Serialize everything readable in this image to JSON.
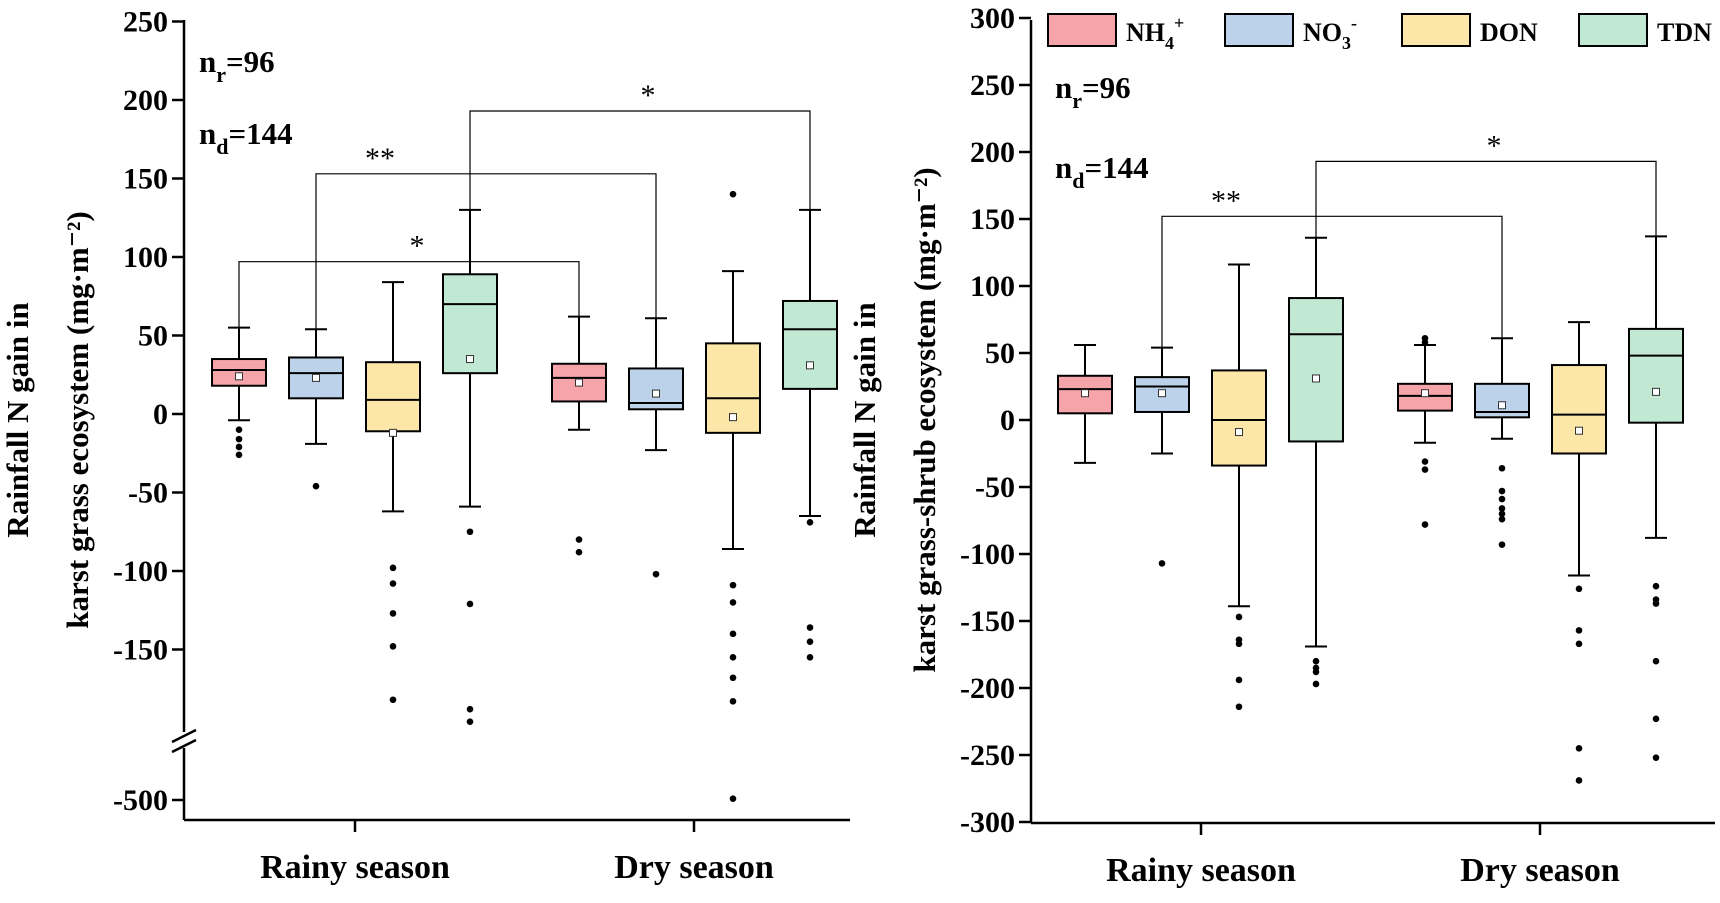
{
  "chart_data": [
    {
      "type": "box",
      "title": "",
      "ylabel_lines": [
        "Rainfall N gain in",
        "karst grass ecosystem (mg·m⁻²)"
      ],
      "categories": [
        "Rainy season",
        "Dry season"
      ],
      "series_names": [
        "NH4+",
        "NO3-",
        "DON",
        "TDN"
      ],
      "ylim": [
        -500,
        250
      ],
      "axis_break": {
        "between": [
          -500,
          -200
        ]
      },
      "yticks": [
        -500,
        -150,
        -100,
        -50,
        0,
        50,
        100,
        150,
        200,
        250
      ],
      "tick_labels": [
        "-500",
        "-150",
        "-100",
        "-50",
        "0",
        "50",
        "100",
        "150",
        "200",
        "250"
      ],
      "annotations": {
        "n_r": "96",
        "n_d": "144"
      },
      "boxes": [
        {
          "series": "NH4+",
          "category": "Rainy season",
          "q1": 18,
          "median": 28,
          "q3": 35,
          "whisker_low": -4,
          "whisker_high": 55,
          "mean": 24,
          "outliers": [
            -10,
            -16,
            -21,
            -26
          ]
        },
        {
          "series": "NO3-",
          "category": "Rainy season",
          "q1": 10,
          "median": 26,
          "q3": 36,
          "whisker_low": -19,
          "whisker_high": 54,
          "mean": 23,
          "outliers": [
            -46
          ]
        },
        {
          "series": "DON",
          "category": "Rainy season",
          "q1": -11,
          "median": 9,
          "q3": 33,
          "whisker_low": -62,
          "whisker_high": 84,
          "mean": -12,
          "outliers": [
            -98,
            -108,
            -127,
            -148,
            -182
          ]
        },
        {
          "series": "TDN",
          "category": "Rainy season",
          "q1": 26,
          "median": 70,
          "q3": 89,
          "whisker_low": -59,
          "whisker_high": 130,
          "mean": 35,
          "outliers": [
            -75,
            -121,
            -188,
            -196
          ]
        },
        {
          "series": "NH4+",
          "category": "Dry season",
          "q1": 8,
          "median": 23,
          "q3": 32,
          "whisker_low": -10,
          "whisker_high": 62,
          "mean": 20,
          "outliers": [
            -80,
            -88
          ]
        },
        {
          "series": "NO3-",
          "category": "Dry season",
          "q1": 3,
          "median": 7,
          "q3": 29,
          "whisker_low": -23,
          "whisker_high": 61,
          "mean": 13,
          "outliers": [
            -102
          ]
        },
        {
          "series": "DON",
          "category": "Dry season",
          "q1": -12,
          "median": 10,
          "q3": 45,
          "whisker_low": -86,
          "whisker_high": 91,
          "mean": -2,
          "outliers": [
            140,
            -109,
            -120,
            -140,
            -155,
            -168,
            -183,
            -480
          ]
        },
        {
          "series": "TDN",
          "category": "Dry season",
          "q1": 16,
          "median": 54,
          "q3": 72,
          "whisker_low": -65,
          "whisker_high": 130,
          "mean": 31,
          "outliers": [
            -69,
            -136,
            -145,
            -155
          ]
        }
      ],
      "significance": [
        {
          "from": "NH4+ Rainy season",
          "to": "NH4+ Dry season",
          "label": "*",
          "level": 97
        },
        {
          "from": "NO3- Rainy season",
          "to": "NO3- Dry season",
          "label": "**",
          "level": 153
        },
        {
          "from": "TDN Rainy season",
          "to": "TDN Dry season",
          "label": "*",
          "level": 193
        }
      ]
    },
    {
      "type": "box",
      "title": "",
      "ylabel_lines": [
        "Rainfall N gain in",
        "karst grass-shrub ecosystem (mg·m⁻²)"
      ],
      "categories": [
        "Rainy season",
        "Dry season"
      ],
      "series_names": [
        "NH4+",
        "NO3-",
        "DON",
        "TDN"
      ],
      "ylim": [
        -300,
        300
      ],
      "yticks": [
        -300,
        -250,
        -200,
        -150,
        -100,
        -50,
        0,
        50,
        100,
        150,
        200,
        250,
        300
      ],
      "tick_labels": [
        "-300",
        "-250",
        "-200",
        "-150",
        "-100",
        "-50",
        "0",
        "50",
        "100",
        "150",
        "200",
        "250",
        "300"
      ],
      "annotations": {
        "n_r": "96",
        "n_d": "144"
      },
      "boxes": [
        {
          "series": "NH4+",
          "category": "Rainy season",
          "q1": 5,
          "median": 23,
          "q3": 33,
          "whisker_low": -32,
          "whisker_high": 56,
          "mean": 20,
          "outliers": []
        },
        {
          "series": "NO3-",
          "category": "Rainy season",
          "q1": 6,
          "median": 25,
          "q3": 32,
          "whisker_low": -25,
          "whisker_high": 54,
          "mean": 20,
          "outliers": [
            -107
          ]
        },
        {
          "series": "DON",
          "category": "Rainy season",
          "q1": -34,
          "median": 0,
          "q3": 37,
          "whisker_low": -139,
          "whisker_high": 116,
          "mean": -9,
          "outliers": [
            -147,
            -164,
            -167,
            -194,
            -214
          ]
        },
        {
          "series": "TDN",
          "category": "Rainy season",
          "q1": -16,
          "median": 64,
          "q3": 91,
          "whisker_low": -169,
          "whisker_high": 136,
          "mean": 31,
          "outliers": [
            -180,
            -185,
            -188,
            -197
          ]
        },
        {
          "series": "NH4+",
          "category": "Dry season",
          "q1": 7,
          "median": 18,
          "q3": 27,
          "whisker_low": -17,
          "whisker_high": 56,
          "mean": 20,
          "outliers": [
            58,
            61,
            -31,
            -37,
            -78
          ]
        },
        {
          "series": "NO3-",
          "category": "Dry season",
          "q1": 2,
          "median": 6,
          "q3": 27,
          "whisker_low": -14,
          "whisker_high": 61,
          "mean": 11,
          "outliers": [
            -36,
            -53,
            -59,
            -66,
            -70,
            -74,
            -93
          ]
        },
        {
          "series": "DON",
          "category": "Dry season",
          "q1": -25,
          "median": 4,
          "q3": 41,
          "whisker_low": -116,
          "whisker_high": 73,
          "mean": -8,
          "outliers": [
            -126,
            -157,
            -167,
            -245,
            -269
          ]
        },
        {
          "series": "TDN",
          "category": "Dry season",
          "q1": -2,
          "median": 48,
          "q3": 68,
          "whisker_low": -88,
          "whisker_high": 137,
          "mean": 21,
          "outliers": [
            -124,
            -134,
            -137,
            -180,
            -223,
            -252
          ]
        }
      ],
      "significance": [
        {
          "from": "NO3- Rainy season",
          "to": "NO3- Dry season",
          "label": "**",
          "level": 152
        },
        {
          "from": "TDN Rainy season",
          "to": "TDN Dry season",
          "label": "*",
          "level": 193
        }
      ]
    }
  ],
  "legend": [
    {
      "series": "NH4+",
      "base": "NH",
      "sub": "4",
      "sup": "+",
      "color": "#f5a5aa"
    },
    {
      "series": "NO3-",
      "base": "NO",
      "sub": "3",
      "sup": "-",
      "color": "#bcd2ea"
    },
    {
      "series": "DON",
      "base": "DON",
      "sub": "",
      "sup": "",
      "color": "#fde7a8"
    },
    {
      "series": "TDN",
      "base": "TDN",
      "sub": "",
      "sup": "",
      "color": "#c0e8d2"
    }
  ]
}
